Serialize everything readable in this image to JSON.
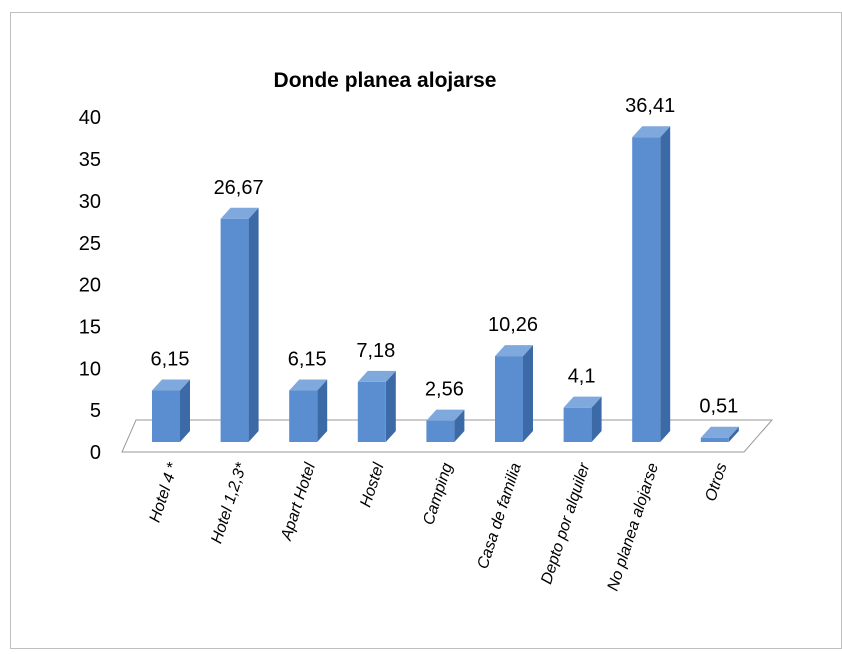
{
  "chart_data": {
    "type": "bar",
    "title": "Donde planea alojarse",
    "categories": [
      "Hotel 4 *",
      "Hotel 1,2,3*",
      "Apart Hotel",
      "Hostel",
      "Camping",
      "Casa de familia",
      "Depto por alquiler",
      "No planea alojarse",
      "Otros"
    ],
    "values": [
      6.15,
      26.67,
      6.15,
      7.18,
      2.56,
      10.26,
      4.1,
      36.41,
      0.51
    ],
    "value_labels": [
      "6,15",
      "26,67",
      "6,15",
      "7,18",
      "2,56",
      "10,26",
      "4,1",
      "36,41",
      "0,51"
    ],
    "ylim": [
      0,
      40
    ],
    "yticks": [
      0,
      5,
      10,
      15,
      20,
      25,
      30,
      35,
      40
    ],
    "grid": false,
    "legend": "none",
    "colors": {
      "bar_front": "#5a8ed0",
      "bar_side": "#3c6aa6",
      "bar_top": "#7fa8dc",
      "floor": "#9a9a9a",
      "text": "#000000",
      "frame": "#bfbfbf"
    }
  }
}
